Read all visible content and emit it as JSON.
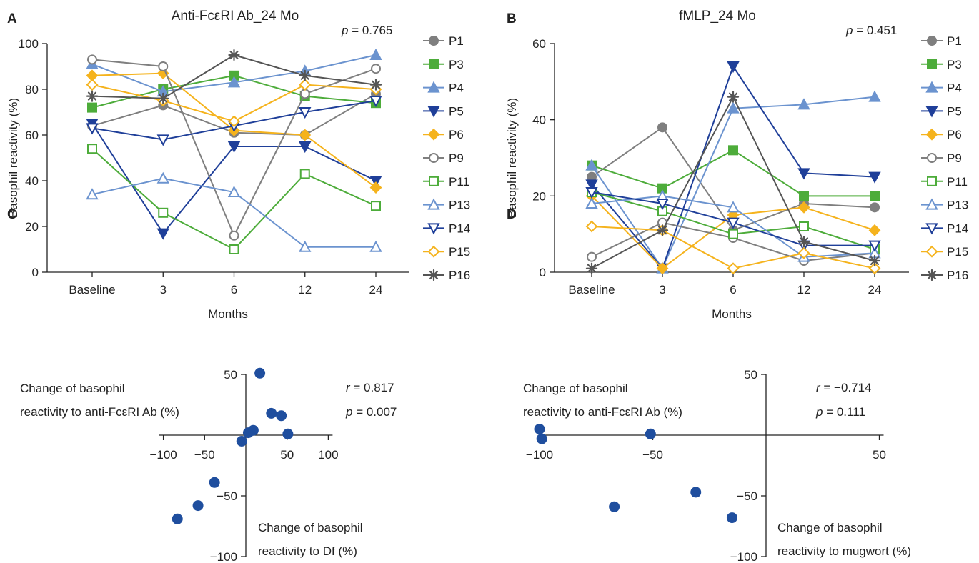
{
  "chart_data": [
    {
      "panel": "A",
      "type": "line",
      "title": "Anti-FcεRI Ab_24 Mo",
      "xlabel": "Months",
      "ylabel": "Basophil reactivity (%)",
      "categories": [
        "Baseline",
        "3",
        "6",
        "12",
        "24"
      ],
      "ylim": [
        0,
        100
      ],
      "yticks": [
        0,
        20,
        40,
        60,
        80,
        100
      ],
      "p_label": "p",
      "p_value": "= 0.765",
      "series": [
        {
          "name": "P1",
          "color": "#7f7f7f",
          "marker": "circle-filled",
          "values": [
            64,
            73,
            61,
            60,
            78
          ]
        },
        {
          "name": "P3",
          "color": "#4dac3a",
          "marker": "square-filled",
          "values": [
            72,
            80,
            86,
            77,
            74
          ]
        },
        {
          "name": "P4",
          "color": "#6b93cf",
          "marker": "triangle-up-filled",
          "values": [
            91,
            79,
            83,
            88,
            95
          ]
        },
        {
          "name": "P5",
          "color": "#1f3f99",
          "marker": "triangle-down-filled",
          "values": [
            65,
            17,
            55,
            55,
            40
          ]
        },
        {
          "name": "P6",
          "color": "#f5b31d",
          "marker": "diamond-filled",
          "values": [
            86,
            87,
            62,
            60,
            37
          ]
        },
        {
          "name": "P9",
          "color": "#7f7f7f",
          "marker": "circle-open",
          "values": [
            93,
            90,
            16,
            78,
            89
          ]
        },
        {
          "name": "P11",
          "color": "#4dac3a",
          "marker": "square-open",
          "values": [
            54,
            26,
            10,
            43,
            29
          ]
        },
        {
          "name": "P13",
          "color": "#6b93cf",
          "marker": "triangle-up-open",
          "values": [
            34,
            41,
            35,
            11,
            11
          ]
        },
        {
          "name": "P14",
          "color": "#1f3f99",
          "marker": "triangle-down-open",
          "values": [
            63,
            58,
            64,
            70,
            75
          ]
        },
        {
          "name": "P15",
          "color": "#f5b31d",
          "marker": "diamond-open",
          "values": [
            82,
            75,
            66,
            82,
            80
          ]
        },
        {
          "name": "P16",
          "color": "#555555",
          "marker": "star",
          "values": [
            77,
            76,
            95,
            86,
            82
          ]
        }
      ]
    },
    {
      "panel": "B",
      "type": "line",
      "title": "fMLP_24 Mo",
      "xlabel": "Months",
      "ylabel": "Basophil reactivity (%)",
      "categories": [
        "Baseline",
        "3",
        "6",
        "12",
        "24"
      ],
      "ylim": [
        0,
        60
      ],
      "yticks": [
        0,
        20,
        40,
        60
      ],
      "p_label": "p",
      "p_value": "= 0.451",
      "series": [
        {
          "name": "P1",
          "color": "#7f7f7f",
          "marker": "circle-filled",
          "values": [
            25,
            38,
            11,
            18,
            17
          ]
        },
        {
          "name": "P3",
          "color": "#4dac3a",
          "marker": "square-filled",
          "values": [
            28,
            22,
            32,
            20,
            20
          ]
        },
        {
          "name": "P4",
          "color": "#6b93cf",
          "marker": "triangle-up-filled",
          "values": [
            28,
            1,
            43,
            44,
            46
          ]
        },
        {
          "name": "P5",
          "color": "#1f3f99",
          "marker": "triangle-down-filled",
          "values": [
            23,
            1,
            54,
            26,
            25
          ]
        },
        {
          "name": "P6",
          "color": "#f5b31d",
          "marker": "diamond-filled",
          "values": [
            20,
            1,
            15,
            17,
            11
          ]
        },
        {
          "name": "P9",
          "color": "#7f7f7f",
          "marker": "circle-open",
          "values": [
            4,
            13,
            9,
            3,
            5
          ]
        },
        {
          "name": "P11",
          "color": "#4dac3a",
          "marker": "square-open",
          "values": [
            21,
            16,
            10,
            12,
            6
          ]
        },
        {
          "name": "P13",
          "color": "#6b93cf",
          "marker": "triangle-up-open",
          "values": [
            18,
            20,
            17,
            4,
            5
          ]
        },
        {
          "name": "P14",
          "color": "#1f3f99",
          "marker": "triangle-down-open",
          "values": [
            21,
            18,
            13,
            7,
            7
          ]
        },
        {
          "name": "P15",
          "color": "#f5b31d",
          "marker": "diamond-open",
          "values": [
            12,
            11,
            1,
            5,
            1
          ]
        },
        {
          "name": "P16",
          "color": "#555555",
          "marker": "star",
          "values": [
            1,
            11,
            46,
            8,
            3
          ]
        }
      ]
    },
    {
      "panel": "C",
      "type": "scatter",
      "xlabel_lines": [
        "Change of basophil",
        "reactivity to Df (%)"
      ],
      "ylabel_lines": [
        "Change of basophil",
        "reactivity to anti-FcεRI Ab (%)"
      ],
      "xlim": [
        -100,
        100
      ],
      "ylim": [
        -100,
        50
      ],
      "xticks": [
        -100,
        -50,
        50,
        100
      ],
      "yticks": [
        50,
        -50,
        -100
      ],
      "r_label": "r",
      "r_value": "= 0.817",
      "p_label": "p",
      "p_value": "= 0.007",
      "color": "#1f4e9e",
      "points": [
        {
          "x": -83,
          "y": -69
        },
        {
          "x": -58,
          "y": -58
        },
        {
          "x": -38,
          "y": -39
        },
        {
          "x": -5,
          "y": -5
        },
        {
          "x": 3,
          "y": 2
        },
        {
          "x": 9,
          "y": 4
        },
        {
          "x": 17,
          "y": 51
        },
        {
          "x": 31,
          "y": 18
        },
        {
          "x": 43,
          "y": 16
        },
        {
          "x": 51,
          "y": 1
        }
      ]
    },
    {
      "panel": "D",
      "type": "scatter",
      "xlabel_lines": [
        "Change of basophil",
        "reactivity to mugwort (%)"
      ],
      "ylabel_lines": [
        "Change of basophil",
        "reactivity to anti-FcεRI Ab (%)"
      ],
      "xlim": [
        -100,
        50
      ],
      "ylim": [
        -100,
        50
      ],
      "xticks": [
        -100,
        -50,
        50
      ],
      "yticks": [
        50,
        -50,
        -100
      ],
      "r_label": "r",
      "r_value": "= −0.714",
      "p_label": "p",
      "p_value": "= 0.111",
      "color": "#1f4e9e",
      "points": [
        {
          "x": -100,
          "y": 5
        },
        {
          "x": -99,
          "y": -3
        },
        {
          "x": -51,
          "y": 1
        },
        {
          "x": -67,
          "y": -59
        },
        {
          "x": -31,
          "y": -47
        },
        {
          "x": -15,
          "y": -68
        }
      ]
    }
  ]
}
